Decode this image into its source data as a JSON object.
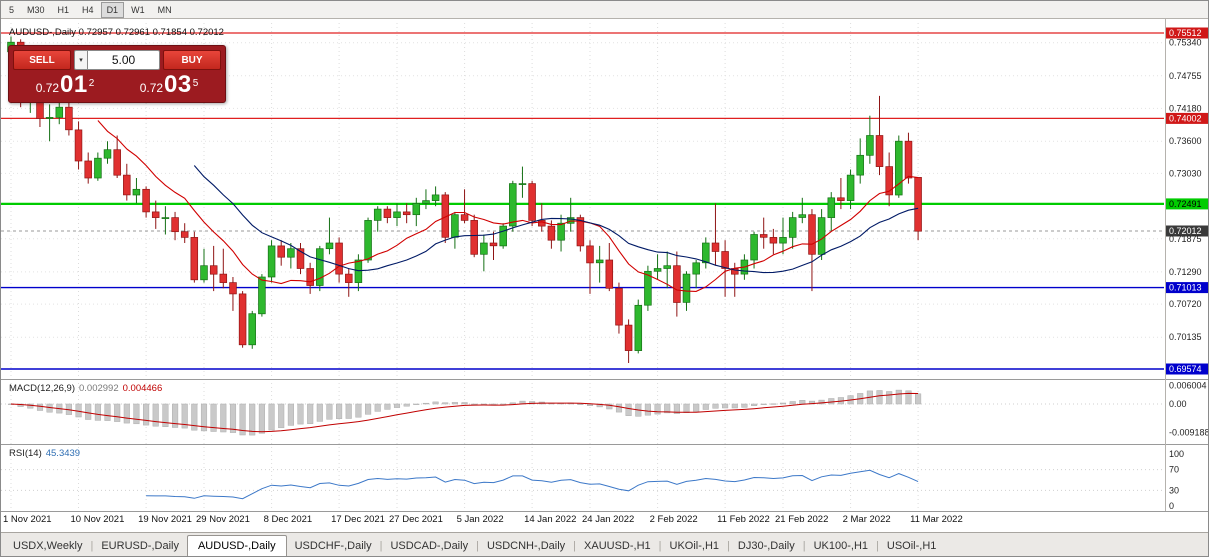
{
  "toolbar": {
    "timeframes": [
      "5",
      "M30",
      "H1",
      "H4",
      "D1",
      "W1",
      "MN"
    ],
    "active": "D1"
  },
  "symbol_header": {
    "text": "AUDUSD-,Daily  0.72957 0.72961 0.71854 0.72012"
  },
  "trade_panel": {
    "sell_label": "SELL",
    "buy_label": "BUY",
    "volume": "5.00",
    "volume_dropdown_icon": "▾",
    "sell": {
      "prefix": "0.72",
      "big": "01",
      "sup": "2"
    },
    "buy": {
      "prefix": "0.72",
      "big": "03",
      "sup": "5"
    }
  },
  "chart_data": {
    "type": "candlestick",
    "symbol": "AUDUSD-,Daily",
    "ylim": [
      0.693,
      0.7565
    ],
    "current_price": 0.72012,
    "y_axis": [
      {
        "label": "0.75512",
        "value": 0.75512,
        "style": "red"
      },
      {
        "label": "0.75340",
        "value": 0.7534,
        "style": "plain"
      },
      {
        "label": "0.74755",
        "value": 0.74755,
        "style": "plain"
      },
      {
        "label": "0.74180",
        "value": 0.7418,
        "style": "plain"
      },
      {
        "label": "0.74002",
        "value": 0.74002,
        "style": "red"
      },
      {
        "label": "0.73600",
        "value": 0.736,
        "style": "plain"
      },
      {
        "label": "0.73030",
        "value": 0.7303,
        "style": "plain"
      },
      {
        "label": "0.72491",
        "value": 0.72491,
        "style": "green"
      },
      {
        "label": "0.72012",
        "value": 0.72012,
        "style": "dark"
      },
      {
        "label": "0.71875",
        "value": 0.71875,
        "style": "plain"
      },
      {
        "label": "0.71290",
        "value": 0.7129,
        "style": "plain"
      },
      {
        "label": "0.71013",
        "value": 0.71013,
        "style": "blue"
      },
      {
        "label": "0.70720",
        "value": 0.7072,
        "style": "plain"
      },
      {
        "label": "0.70135",
        "value": 0.70135,
        "style": "plain"
      },
      {
        "label": "0.69574",
        "value": 0.69574,
        "style": "blue"
      }
    ],
    "price_lines": [
      {
        "value": 0.75512,
        "color": "#e02020",
        "width": 1.2
      },
      {
        "value": 0.74002,
        "color": "#e02020",
        "width": 1.2
      },
      {
        "value": 0.72491,
        "color": "#00cc00",
        "width": 2.2
      },
      {
        "value": 0.71013,
        "color": "#0000cc",
        "width": 1.4
      },
      {
        "value": 0.69574,
        "color": "#0000cc",
        "width": 1.4
      }
    ],
    "moving_averages": [
      {
        "period": 10,
        "color": "#d00000"
      },
      {
        "period": 20,
        "color": "#001a66"
      }
    ],
    "x_labels": [
      {
        "i": 0,
        "label": "1 Nov 2021"
      },
      {
        "i": 7,
        "label": "10 Nov 2021"
      },
      {
        "i": 14,
        "label": "19 Nov 2021"
      },
      {
        "i": 20,
        "label": "29 Nov 2021"
      },
      {
        "i": 27,
        "label": "8 Dec 2021"
      },
      {
        "i": 34,
        "label": "17 Dec 2021"
      },
      {
        "i": 40,
        "label": "27 Dec 2021"
      },
      {
        "i": 47,
        "label": "5 Jan 2022"
      },
      {
        "i": 54,
        "label": "14 Jan 2022"
      },
      {
        "i": 60,
        "label": "24 Jan 2022"
      },
      {
        "i": 67,
        "label": "2 Feb 2022"
      },
      {
        "i": 74,
        "label": "11 Feb 2022"
      },
      {
        "i": 80,
        "label": "21 Feb 2022"
      },
      {
        "i": 87,
        "label": "2 Mar 2022"
      },
      {
        "i": 94,
        "label": "11 Mar 2022"
      }
    ],
    "candles": [
      [
        0.7518,
        0.7545,
        0.75,
        0.7535
      ],
      [
        0.7535,
        0.754,
        0.742,
        0.743
      ],
      [
        0.743,
        0.7455,
        0.741,
        0.7448
      ],
      [
        0.7448,
        0.745,
        0.7385,
        0.74
      ],
      [
        0.74,
        0.7425,
        0.736,
        0.7402
      ],
      [
        0.7402,
        0.7432,
        0.739,
        0.742
      ],
      [
        0.742,
        0.744,
        0.737,
        0.738
      ],
      [
        0.738,
        0.7395,
        0.731,
        0.7325
      ],
      [
        0.7325,
        0.734,
        0.7285,
        0.7295
      ],
      [
        0.7295,
        0.734,
        0.729,
        0.733
      ],
      [
        0.733,
        0.736,
        0.732,
        0.7345
      ],
      [
        0.7345,
        0.737,
        0.7295,
        0.73
      ],
      [
        0.73,
        0.732,
        0.7255,
        0.7265
      ],
      [
        0.7265,
        0.7295,
        0.725,
        0.7275
      ],
      [
        0.7275,
        0.728,
        0.7225,
        0.7235
      ],
      [
        0.7235,
        0.7255,
        0.7205,
        0.7225
      ],
      [
        0.7225,
        0.7245,
        0.7195,
        0.7225
      ],
      [
        0.7225,
        0.7235,
        0.7185,
        0.72
      ],
      [
        0.72,
        0.7215,
        0.718,
        0.719
      ],
      [
        0.719,
        0.72,
        0.711,
        0.7115
      ],
      [
        0.7115,
        0.717,
        0.711,
        0.714
      ],
      [
        0.714,
        0.7175,
        0.7095,
        0.7125
      ],
      [
        0.7125,
        0.717,
        0.71,
        0.711
      ],
      [
        0.711,
        0.712,
        0.706,
        0.709
      ],
      [
        0.709,
        0.7095,
        0.6995,
        0.7
      ],
      [
        0.7,
        0.706,
        0.6993,
        0.7055
      ],
      [
        0.7055,
        0.7125,
        0.705,
        0.712
      ],
      [
        0.712,
        0.7185,
        0.711,
        0.7175
      ],
      [
        0.7175,
        0.7185,
        0.714,
        0.7155
      ],
      [
        0.7155,
        0.718,
        0.7135,
        0.717
      ],
      [
        0.717,
        0.718,
        0.7125,
        0.7135
      ],
      [
        0.7135,
        0.7145,
        0.709,
        0.7105
      ],
      [
        0.7105,
        0.7175,
        0.7095,
        0.717
      ],
      [
        0.717,
        0.7225,
        0.716,
        0.718
      ],
      [
        0.718,
        0.719,
        0.711,
        0.7125
      ],
      [
        0.7125,
        0.7135,
        0.7085,
        0.711
      ],
      [
        0.711,
        0.716,
        0.7095,
        0.715
      ],
      [
        0.715,
        0.7225,
        0.7145,
        0.722
      ],
      [
        0.722,
        0.7245,
        0.72,
        0.724
      ],
      [
        0.724,
        0.7245,
        0.7215,
        0.7225
      ],
      [
        0.7225,
        0.725,
        0.721,
        0.7235
      ],
      [
        0.7235,
        0.725,
        0.7215,
        0.723
      ],
      [
        0.723,
        0.726,
        0.721,
        0.725
      ],
      [
        0.725,
        0.7275,
        0.724,
        0.7255
      ],
      [
        0.7255,
        0.728,
        0.7245,
        0.7265
      ],
      [
        0.7265,
        0.727,
        0.718,
        0.719
      ],
      [
        0.719,
        0.7235,
        0.717,
        0.723
      ],
      [
        0.723,
        0.7275,
        0.7215,
        0.722
      ],
      [
        0.722,
        0.723,
        0.7155,
        0.716
      ],
      [
        0.716,
        0.7195,
        0.713,
        0.718
      ],
      [
        0.718,
        0.72,
        0.715,
        0.7175
      ],
      [
        0.7175,
        0.7215,
        0.717,
        0.721
      ],
      [
        0.721,
        0.729,
        0.72,
        0.7285
      ],
      [
        0.7285,
        0.7315,
        0.726,
        0.7285
      ],
      [
        0.7285,
        0.729,
        0.721,
        0.722
      ],
      [
        0.722,
        0.725,
        0.72,
        0.721
      ],
      [
        0.721,
        0.722,
        0.717,
        0.7185
      ],
      [
        0.7185,
        0.723,
        0.7165,
        0.7215
      ],
      [
        0.7215,
        0.726,
        0.72,
        0.7225
      ],
      [
        0.7225,
        0.723,
        0.7165,
        0.7175
      ],
      [
        0.7175,
        0.7185,
        0.709,
        0.7145
      ],
      [
        0.7145,
        0.7175,
        0.711,
        0.715
      ],
      [
        0.715,
        0.718,
        0.7095,
        0.71
      ],
      [
        0.71,
        0.711,
        0.702,
        0.7035
      ],
      [
        0.7035,
        0.7045,
        0.6968,
        0.699
      ],
      [
        0.699,
        0.708,
        0.6985,
        0.707
      ],
      [
        0.707,
        0.714,
        0.706,
        0.713
      ],
      [
        0.713,
        0.716,
        0.7115,
        0.7135
      ],
      [
        0.7135,
        0.7165,
        0.71,
        0.714
      ],
      [
        0.714,
        0.7165,
        0.705,
        0.7075
      ],
      [
        0.7075,
        0.713,
        0.706,
        0.7125
      ],
      [
        0.7125,
        0.715,
        0.71,
        0.7145
      ],
      [
        0.7145,
        0.719,
        0.7135,
        0.718
      ],
      [
        0.718,
        0.725,
        0.714,
        0.7165
      ],
      [
        0.7165,
        0.7185,
        0.7085,
        0.7135
      ],
      [
        0.7135,
        0.7145,
        0.7085,
        0.7125
      ],
      [
        0.7125,
        0.716,
        0.7115,
        0.715
      ],
      [
        0.715,
        0.72,
        0.7135,
        0.7195
      ],
      [
        0.7195,
        0.7225,
        0.717,
        0.719
      ],
      [
        0.719,
        0.7205,
        0.716,
        0.718
      ],
      [
        0.718,
        0.7225,
        0.716,
        0.719
      ],
      [
        0.719,
        0.7235,
        0.717,
        0.7225
      ],
      [
        0.7225,
        0.726,
        0.7215,
        0.723
      ],
      [
        0.723,
        0.724,
        0.7095,
        0.716
      ],
      [
        0.716,
        0.724,
        0.715,
        0.7225
      ],
      [
        0.7225,
        0.727,
        0.72,
        0.726
      ],
      [
        0.726,
        0.7295,
        0.724,
        0.7255
      ],
      [
        0.7255,
        0.731,
        0.724,
        0.73
      ],
      [
        0.73,
        0.7365,
        0.7285,
        0.7335
      ],
      [
        0.7335,
        0.7405,
        0.732,
        0.737
      ],
      [
        0.737,
        0.744,
        0.73,
        0.7315
      ],
      [
        0.7315,
        0.734,
        0.7245,
        0.7265
      ],
      [
        0.7265,
        0.737,
        0.726,
        0.736
      ],
      [
        0.736,
        0.7375,
        0.7285,
        0.7295
      ],
      [
        0.7296,
        0.7296,
        0.7185,
        0.7201
      ]
    ],
    "macd": {
      "label": "MACD(12,26,9)",
      "value_main": "0.002992",
      "value_signal": "0.004466",
      "params": [
        12,
        26,
        9
      ],
      "axis": [
        {
          "label": "0.006004",
          "value": 0.006004
        },
        {
          "label": "0.00",
          "value": 0
        },
        {
          "label": "-0.009188",
          "value": -0.009188
        }
      ]
    },
    "rsi": {
      "label": "RSI(14)",
      "value_text": "45.3439",
      "period": 14,
      "levels": [
        70,
        30
      ],
      "axis": [
        {
          "label": "100",
          "value": 100
        },
        {
          "label": "70",
          "value": 70
        },
        {
          "label": "30",
          "value": 30
        },
        {
          "label": "0",
          "value": 0
        }
      ]
    }
  },
  "tabs": {
    "items": [
      {
        "label": "USDX,Weekly",
        "active": false
      },
      {
        "label": "EURUSD-,Daily",
        "active": false
      },
      {
        "label": "AUDUSD-,Daily",
        "active": true
      },
      {
        "label": "USDCHF-,Daily",
        "active": false
      },
      {
        "label": "USDCAD-,Daily",
        "active": false
      },
      {
        "label": "USDCNH-,Daily",
        "active": false
      },
      {
        "label": "XAUUSD-,H1",
        "active": false
      },
      {
        "label": "UKOil-,H1",
        "active": false
      },
      {
        "label": "DJ30-,Daily",
        "active": false
      },
      {
        "label": "UK100-,H1",
        "active": false
      },
      {
        "label": "USOil-,H1",
        "active": false
      }
    ]
  }
}
